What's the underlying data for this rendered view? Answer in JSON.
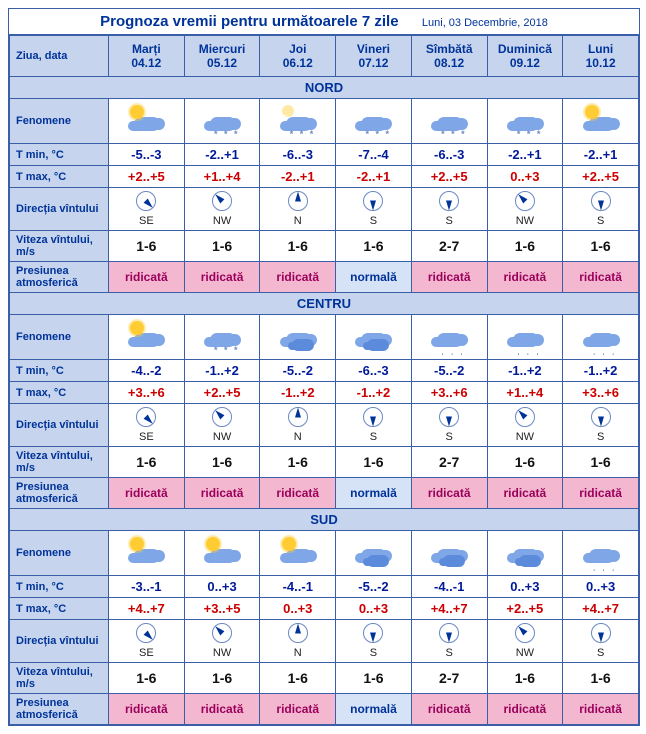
{
  "title": "Prognoza vremii pentru următoarele 7 zile",
  "subtitle": "Luni, 03 Decembrie, 2018",
  "rowlabels": {
    "day": "Ziua, data",
    "phen": "Fenomene",
    "tmin": "T min, °C",
    "tmax": "T max, °C",
    "wind": "Direcția vîntului",
    "speed": "Viteza vîntului, m/s",
    "press": "Presiunea atmosferică"
  },
  "days": [
    {
      "name": "Marți",
      "date": "04.12"
    },
    {
      "name": "Miercuri",
      "date": "05.12"
    },
    {
      "name": "Joi",
      "date": "06.12"
    },
    {
      "name": "Vineri",
      "date": "07.12"
    },
    {
      "name": "Sîmbătă",
      "date": "08.12"
    },
    {
      "name": "Duminică",
      "date": "09.12"
    },
    {
      "name": "Luni",
      "date": "10.12"
    }
  ],
  "windDeg": {
    "SE": 135,
    "NW": 315,
    "N": 0,
    "S": 180
  },
  "regions": [
    {
      "name": "NORD",
      "phen": [
        "sun-cloud",
        "cloud-snow",
        "moon-cloud-snow",
        "cloud-snow",
        "cloud-snow",
        "cloud-snow",
        "sun-cloud"
      ],
      "tmin": [
        "-5..-3",
        "-2..+1",
        "-6..-3",
        "-7..-4",
        "-6..-3",
        "-2..+1",
        "-2..+1"
      ],
      "tmax": [
        "+2..+5",
        "+1..+4",
        "-2..+1",
        "-2..+1",
        "+2..+5",
        "0..+3",
        "+2..+5"
      ],
      "wind": [
        "SE",
        "NW",
        "N",
        "S",
        "S",
        "NW",
        "S"
      ],
      "speed": [
        "1-6",
        "1-6",
        "1-6",
        "1-6",
        "2-7",
        "1-6",
        "1-6"
      ],
      "press": [
        "ridicată",
        "ridicată",
        "ridicată",
        "normală",
        "ridicată",
        "ridicată",
        "ridicată"
      ]
    },
    {
      "name": "CENTRU",
      "phen": [
        "sun-cloud",
        "cloud-snow",
        "cloud",
        "cloud",
        "cloud-rain",
        "cloud-rain",
        "cloud-rain"
      ],
      "tmin": [
        "-4..-2",
        "-1..+2",
        "-5..-2",
        "-6..-3",
        "-5..-2",
        "-1..+2",
        "-1..+2"
      ],
      "tmax": [
        "+3..+6",
        "+2..+5",
        "-1..+2",
        "-1..+2",
        "+3..+6",
        "+1..+4",
        "+3..+6"
      ],
      "wind": [
        "SE",
        "NW",
        "N",
        "S",
        "S",
        "NW",
        "S"
      ],
      "speed": [
        "1-6",
        "1-6",
        "1-6",
        "1-6",
        "2-7",
        "1-6",
        "1-6"
      ],
      "press": [
        "ridicată",
        "ridicată",
        "ridicată",
        "normală",
        "ridicată",
        "ridicată",
        "ridicată"
      ]
    },
    {
      "name": "SUD",
      "phen": [
        "sun-cloud",
        "sun-cloud",
        "sun-cloud",
        "cloud",
        "cloud2",
        "cloud2",
        "cloud-rain"
      ],
      "tmin": [
        "-3..-1",
        "0..+3",
        "-4..-1",
        "-5..-2",
        "-4..-1",
        "0..+3",
        "0..+3"
      ],
      "tmax": [
        "+4..+7",
        "+3..+5",
        "0..+3",
        "0..+3",
        "+4..+7",
        "+2..+5",
        "+4..+7"
      ],
      "wind": [
        "SE",
        "NW",
        "N",
        "S",
        "S",
        "NW",
        "S"
      ],
      "speed": [
        "1-6",
        "1-6",
        "1-6",
        "1-6",
        "2-7",
        "1-6",
        "1-6"
      ],
      "press": [
        "ridicată",
        "ridicată",
        "ridicată",
        "normală",
        "ridicată",
        "ridicată",
        "ridicată"
      ]
    }
  ],
  "colors": {
    "border": "#3b5ea8",
    "headerBg": "#c6d4ee",
    "headerFg": "#003399",
    "tminFg": "#001a99",
    "tmaxFg": "#cc0000",
    "pressHighBg": "#f3b8cf",
    "pressHighFg": "#9b005c",
    "pressNormBg": "#d6e3f7",
    "pressNormFg": "#003399"
  }
}
